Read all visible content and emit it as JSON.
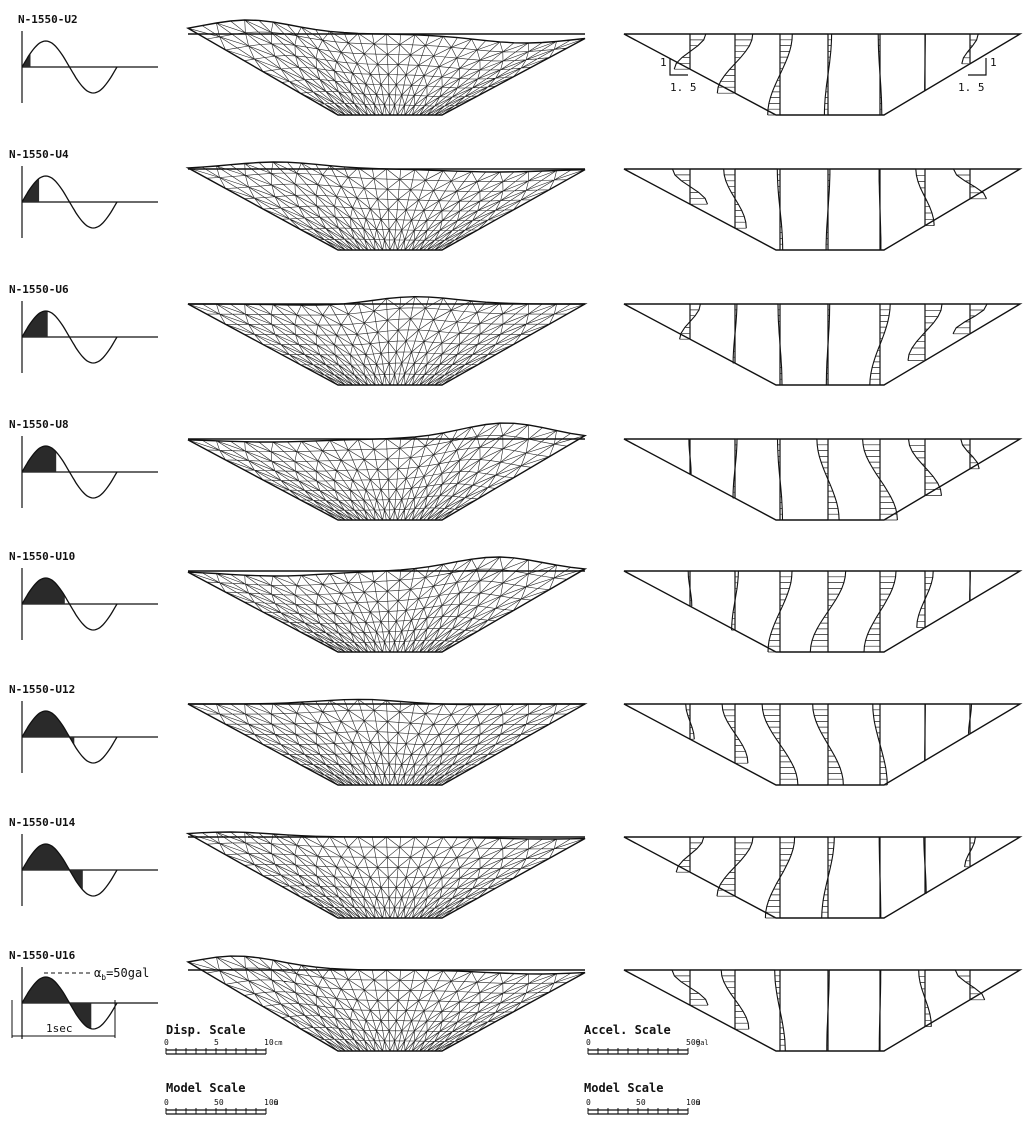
{
  "rows": [
    {
      "label": "N-1550-U2"
    },
    {
      "label": "N-1550-U4"
    },
    {
      "label": "N-1550-U6"
    },
    {
      "label": "N-1550-U8"
    },
    {
      "label": "N-1550-U10"
    },
    {
      "label": "N-1550-U12"
    },
    {
      "label": "N-1550-U14"
    },
    {
      "label": "N-1550-U16"
    }
  ],
  "slope_labels": {
    "vertical": "1",
    "horizontal": "1. 5"
  },
  "input_wave": {
    "amplitude_label": "α",
    "amplitude_sub": "b",
    "amplitude_value": "=50gal",
    "duration_label": "1sec"
  },
  "disp_scale": {
    "title": "Disp.  Scale",
    "ticks": [
      "0",
      "5",
      "10"
    ],
    "unit": "cm"
  },
  "disp_model_scale": {
    "title": "Model  Scale",
    "ticks": [
      "0",
      "50",
      "100"
    ],
    "unit": "m"
  },
  "accel_scale": {
    "title": "Accel.  Scale",
    "ticks": [
      "0",
      "500"
    ],
    "unit": "gal"
  },
  "accel_model_scale": {
    "title": "Model  Scale",
    "ticks": [
      "0",
      "50",
      "100"
    ],
    "unit": "m"
  }
}
